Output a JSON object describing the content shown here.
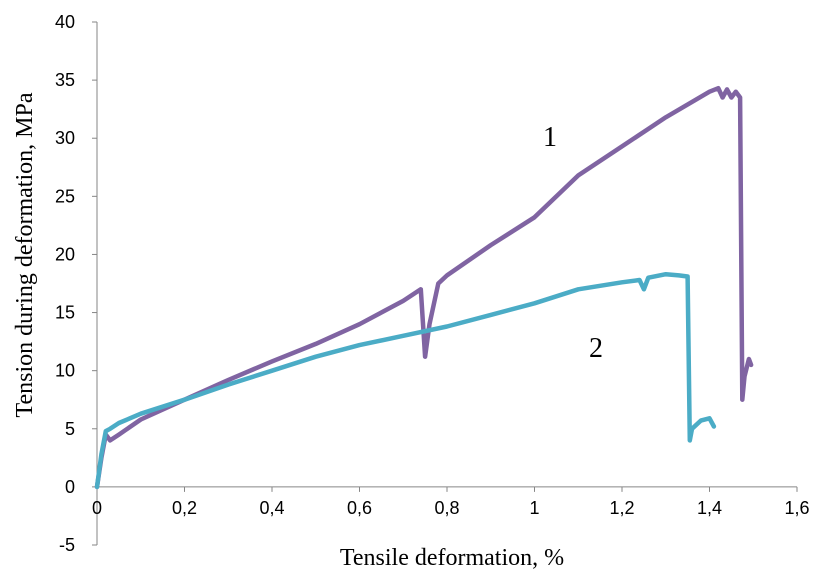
{
  "chart_data": {
    "type": "line",
    "xlabel": "Tensile deformation, %",
    "ylabel": "Tension during deformation, MPa",
    "xlim": [
      0,
      1.6
    ],
    "ylim": [
      -5,
      40
    ],
    "x_ticks": [
      "0",
      "0,2",
      "0,4",
      "0,6",
      "0,8",
      "1",
      "1,2",
      "1,4",
      "1,6"
    ],
    "x_tick_values": [
      0,
      0.2,
      0.4,
      0.6,
      0.8,
      1.0,
      1.2,
      1.4,
      1.6
    ],
    "y_ticks": [
      "-5",
      "0",
      "5",
      "10",
      "15",
      "20",
      "25",
      "30",
      "35",
      "40"
    ],
    "y_tick_values": [
      -5,
      0,
      5,
      10,
      15,
      20,
      25,
      30,
      35,
      40
    ],
    "grid": false,
    "series": [
      {
        "name": "1",
        "color": "#8064A2",
        "x": [
          0,
          0.01,
          0.02,
          0.03,
          0.05,
          0.1,
          0.2,
          0.3,
          0.4,
          0.5,
          0.6,
          0.7,
          0.74,
          0.75,
          0.76,
          0.78,
          0.8,
          0.9,
          1.0,
          1.1,
          1.2,
          1.3,
          1.4,
          1.42,
          1.43,
          1.44,
          1.45,
          1.46,
          1.47,
          1.475,
          1.48,
          1.49,
          1.495
        ],
        "y": [
          0,
          2.5,
          4.5,
          4.0,
          4.5,
          5.8,
          7.5,
          9.2,
          10.8,
          12.3,
          14.0,
          16.0,
          17.0,
          11.2,
          14.0,
          17.5,
          18.2,
          20.8,
          23.2,
          26.8,
          29.3,
          31.8,
          34.0,
          34.3,
          33.5,
          34.2,
          33.5,
          34.0,
          33.5,
          7.5,
          9.5,
          11.0,
          10.5
        ]
      },
      {
        "name": "2",
        "color": "#4BACC6",
        "x": [
          0,
          0.01,
          0.02,
          0.03,
          0.05,
          0.1,
          0.2,
          0.3,
          0.4,
          0.5,
          0.6,
          0.7,
          0.8,
          0.9,
          1.0,
          1.1,
          1.2,
          1.24,
          1.25,
          1.26,
          1.3,
          1.33,
          1.35,
          1.355,
          1.36,
          1.38,
          1.4,
          1.41
        ],
        "y": [
          0,
          2.8,
          4.8,
          5.0,
          5.5,
          6.3,
          7.5,
          8.8,
          10.0,
          11.2,
          12.2,
          13.0,
          13.8,
          14.8,
          15.8,
          17.0,
          17.6,
          17.8,
          17.0,
          18.0,
          18.3,
          18.2,
          18.1,
          4.0,
          5.0,
          5.7,
          5.9,
          5.2
        ]
      }
    ],
    "annotations": [
      "1",
      "2"
    ]
  }
}
